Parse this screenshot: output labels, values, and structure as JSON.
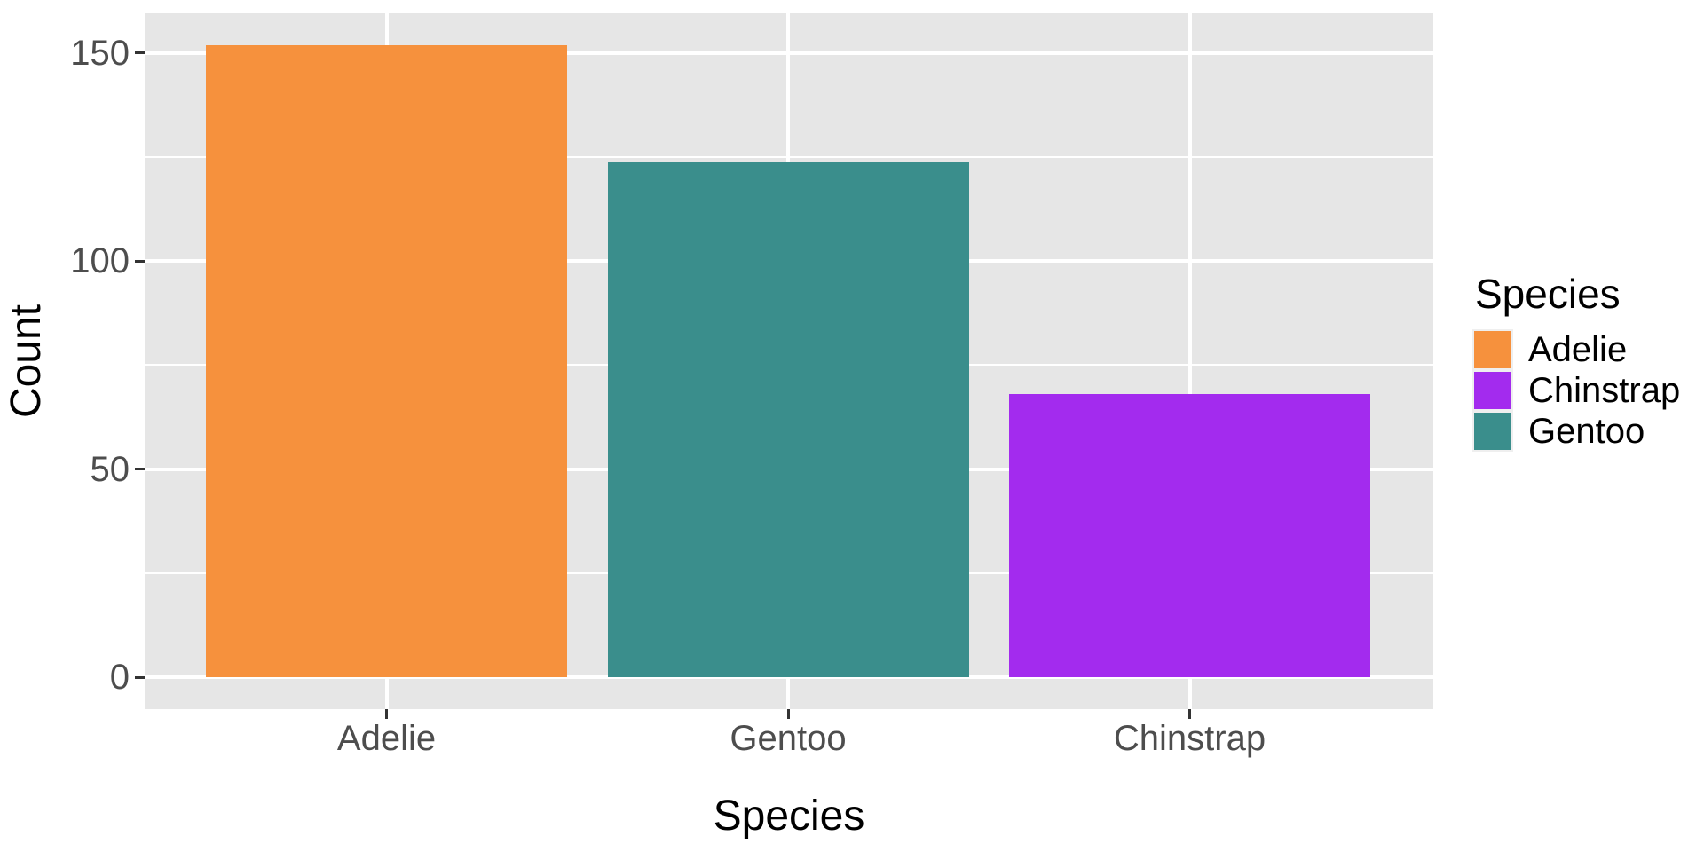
{
  "chart_data": {
    "type": "bar",
    "title": "",
    "xlabel": "Species",
    "ylabel": "Count",
    "categories": [
      "Adelie",
      "Gentoo",
      "Chinstrap"
    ],
    "values": [
      152,
      124,
      68
    ],
    "bar_colors": [
      "#F6913D",
      "#3A8E8C",
      "#A32BEE"
    ],
    "ylim": [
      0,
      159.6
    ],
    "yticks": [
      0,
      50,
      100,
      150
    ],
    "ytick_labels": [
      "0",
      "50",
      "100",
      "150"
    ],
    "yticks_minor": [
      25,
      75,
      125
    ],
    "grid": "white-major-and-minor-on-gray-panel",
    "legend": {
      "title": "Species",
      "position": "right",
      "entries": [
        {
          "label": "Adelie",
          "color": "#F6913D"
        },
        {
          "label": "Chinstrap",
          "color": "#A32BEE"
        },
        {
          "label": "Gentoo",
          "color": "#3A8E8C"
        }
      ]
    },
    "theme": {
      "panel_bg": "#E6E6E6",
      "grid_color": "#FFFFFF",
      "axis_text_color": "#4D4D4D",
      "title_color": "#000000",
      "tick_color": "#333333",
      "legend_key_bg": "#EFEFEF",
      "page_bg": "#FFFFFF"
    }
  }
}
